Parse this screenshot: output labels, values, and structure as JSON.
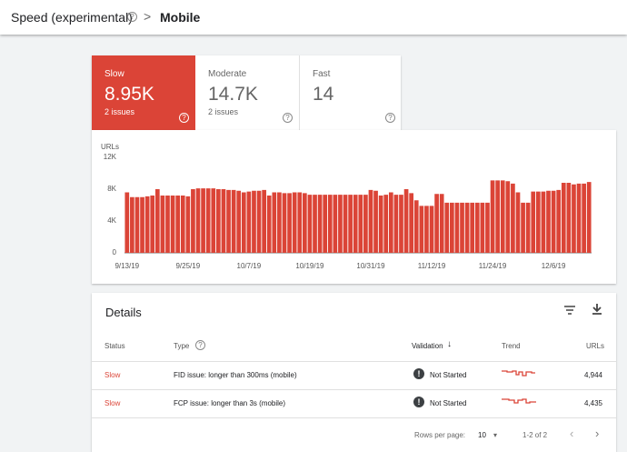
{
  "header": {
    "title": "Speed (experimental)",
    "page": "Mobile"
  },
  "summary": [
    {
      "label": "Slow",
      "value": "8.95K",
      "issues": "2 issues"
    },
    {
      "label": "Moderate",
      "value": "14.7K",
      "issues": "2 issues"
    },
    {
      "label": "Fast",
      "value": "14"
    }
  ],
  "chart_data": {
    "type": "bar",
    "y_label": "URLs",
    "color": "#db4437",
    "categories": [
      "9/13/19",
      null,
      null,
      null,
      null,
      null,
      null,
      null,
      null,
      null,
      null,
      null,
      "9/25/19",
      null,
      null,
      null,
      null,
      null,
      null,
      null,
      null,
      null,
      null,
      null,
      "10/7/19",
      null,
      null,
      null,
      null,
      null,
      null,
      null,
      null,
      null,
      null,
      null,
      "10/19/19",
      null,
      null,
      null,
      null,
      null,
      null,
      null,
      null,
      null,
      null,
      null,
      "10/31/19",
      null,
      null,
      null,
      null,
      null,
      null,
      null,
      null,
      null,
      null,
      null,
      "11/12/19",
      null,
      null,
      null,
      null,
      null,
      null,
      null,
      null,
      null,
      null,
      null,
      "11/24/19",
      null,
      null,
      null,
      null,
      null,
      null,
      null,
      null,
      null,
      null,
      null,
      "12/6/19",
      null,
      null,
      null,
      null,
      null,
      null,
      null
    ],
    "values": [
      7600,
      7000,
      7000,
      7000,
      7100,
      7200,
      8000,
      7200,
      7200,
      7200,
      7200,
      7200,
      7100,
      8000,
      8100,
      8100,
      8100,
      8100,
      8000,
      8000,
      7900,
      7900,
      7800,
      7600,
      7700,
      7800,
      7800,
      7900,
      7200,
      7600,
      7600,
      7500,
      7500,
      7600,
      7600,
      7500,
      7300,
      7300,
      7300,
      7300,
      7300,
      7300,
      7300,
      7300,
      7300,
      7300,
      7300,
      7300,
      7900,
      7800,
      7200,
      7300,
      7600,
      7300,
      7300,
      8000,
      7500,
      6600,
      5900,
      5900,
      5900,
      7400,
      7400,
      6300,
      6300,
      6300,
      6300,
      6300,
      6300,
      6300,
      6300,
      6300,
      9100,
      9100,
      9100,
      9000,
      8700,
      7600,
      6300,
      6300,
      7700,
      7700,
      7700,
      7800,
      7800,
      7900,
      8800,
      8800,
      8600,
      8700,
      8700,
      8900
    ],
    "ylim": [
      0,
      12000
    ],
    "yticks": [
      {
        "value": 0,
        "label": "0"
      },
      {
        "value": 4000,
        "label": "4K"
      },
      {
        "value": 8000,
        "label": "8K"
      },
      {
        "value": 12000,
        "label": "12K"
      }
    ],
    "grid": false
  },
  "details": {
    "title": "Details",
    "columns": [
      "Status",
      "Type",
      "Validation",
      "Trend",
      "URLs"
    ],
    "rows": [
      [
        "Slow",
        "FID issue: longer than 300ms (mobile)",
        "Not Started",
        "4,944"
      ],
      [
        "Slow",
        "FCP issue: longer than 3s (mobile)",
        "Not Started",
        "4,435"
      ]
    ],
    "footer": {
      "rows_label": "Rows per page:",
      "rows_value": "10",
      "range": "1-2 of 2"
    }
  }
}
